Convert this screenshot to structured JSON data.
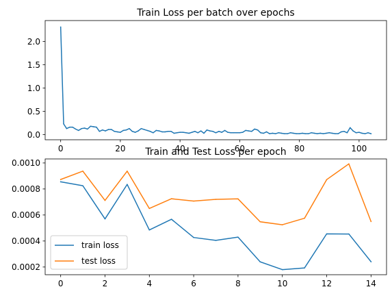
{
  "colors": {
    "series1": "#1f77b4",
    "series2": "#ff7f0e"
  },
  "chart_data": [
    {
      "type": "line",
      "title": "Train Loss per batch over epochs",
      "xlabel": "",
      "ylabel": "",
      "xlim": [
        -5.2,
        109.2
      ],
      "ylim": [
        -0.11,
        2.45
      ],
      "xticks": [
        0,
        20,
        40,
        60,
        80,
        100
      ],
      "yticks": [
        0.0,
        0.5,
        1.0,
        1.5,
        2.0
      ],
      "ytick_labels": [
        "0.0",
        "0.5",
        "1.0",
        "1.5",
        "2.0"
      ],
      "grid": false,
      "series": [
        {
          "color": "#1f77b4",
          "x": [
            0,
            1,
            2,
            3,
            4,
            5,
            6,
            7,
            8,
            9,
            10,
            11,
            12,
            13,
            14,
            15,
            16,
            17,
            18,
            19,
            20,
            21,
            22,
            23,
            24,
            25,
            26,
            27,
            28,
            29,
            30,
            31,
            32,
            33,
            34,
            35,
            36,
            37,
            38,
            39,
            40,
            41,
            42,
            43,
            44,
            45,
            46,
            47,
            48,
            49,
            50,
            51,
            52,
            53,
            54,
            55,
            56,
            57,
            58,
            59,
            60,
            61,
            62,
            63,
            64,
            65,
            66,
            67,
            68,
            69,
            70,
            71,
            72,
            73,
            74,
            75,
            76,
            77,
            78,
            79,
            80,
            81,
            82,
            83,
            84,
            85,
            86,
            87,
            88,
            89,
            90,
            91,
            92,
            93,
            94,
            95,
            96,
            97,
            98,
            99,
            100,
            101,
            102,
            103,
            104
          ],
          "y": [
            2.31,
            0.23,
            0.13,
            0.16,
            0.16,
            0.12,
            0.09,
            0.13,
            0.14,
            0.12,
            0.18,
            0.17,
            0.16,
            0.07,
            0.1,
            0.08,
            0.11,
            0.11,
            0.07,
            0.06,
            0.05,
            0.09,
            0.1,
            0.13,
            0.07,
            0.05,
            0.08,
            0.13,
            0.11,
            0.09,
            0.07,
            0.04,
            0.09,
            0.08,
            0.06,
            0.06,
            0.07,
            0.07,
            0.03,
            0.04,
            0.05,
            0.05,
            0.04,
            0.03,
            0.05,
            0.07,
            0.04,
            0.08,
            0.03,
            0.1,
            0.08,
            0.07,
            0.04,
            0.07,
            0.05,
            0.09,
            0.05,
            0.04,
            0.04,
            0.04,
            0.04,
            0.05,
            0.09,
            0.08,
            0.07,
            0.12,
            0.1,
            0.04,
            0.03,
            0.06,
            0.02,
            0.03,
            0.02,
            0.04,
            0.03,
            0.02,
            0.02,
            0.04,
            0.03,
            0.02,
            0.02,
            0.03,
            0.02,
            0.02,
            0.04,
            0.03,
            0.02,
            0.03,
            0.02,
            0.03,
            0.04,
            0.03,
            0.02,
            0.02,
            0.06,
            0.07,
            0.04,
            0.15,
            0.08,
            0.04,
            0.05,
            0.03,
            0.02,
            0.04,
            0.02
          ]
        }
      ]
    },
    {
      "type": "line",
      "title": "Train and Test Loss per epoch",
      "xlabel": "",
      "ylabel": "",
      "xlim": [
        -0.7,
        14.7
      ],
      "ylim": [
        0.000141,
        0.001031
      ],
      "xticks": [
        0,
        2,
        4,
        6,
        8,
        10,
        12,
        14
      ],
      "yticks": [
        0.0002,
        0.0004,
        0.0006,
        0.0008,
        0.001
      ],
      "ytick_labels": [
        "0.0002",
        "0.0004",
        "0.0006",
        "0.0008",
        "0.0010"
      ],
      "grid": false,
      "legend": "lower-left",
      "categories": [
        0,
        1,
        2,
        3,
        4,
        5,
        6,
        7,
        8,
        9,
        10,
        11,
        12,
        13,
        14
      ],
      "series": [
        {
          "name": "train loss",
          "color": "#1f77b4",
          "values": [
            0.000855,
            0.000825,
            0.00057,
            0.000835,
            0.000485,
            0.000567,
            0.000427,
            0.000405,
            0.00043,
            0.00024,
            0.00018,
            0.000193,
            0.000455,
            0.000454,
            0.000241
          ]
        },
        {
          "name": "test loss",
          "color": "#ff7f0e",
          "values": [
            0.000873,
            0.000937,
            0.000712,
            0.000937,
            0.00065,
            0.000725,
            0.000707,
            0.00072,
            0.000724,
            0.000548,
            0.000525,
            0.000575,
            0.000872,
            0.000993,
            0.00055
          ]
        }
      ]
    }
  ]
}
